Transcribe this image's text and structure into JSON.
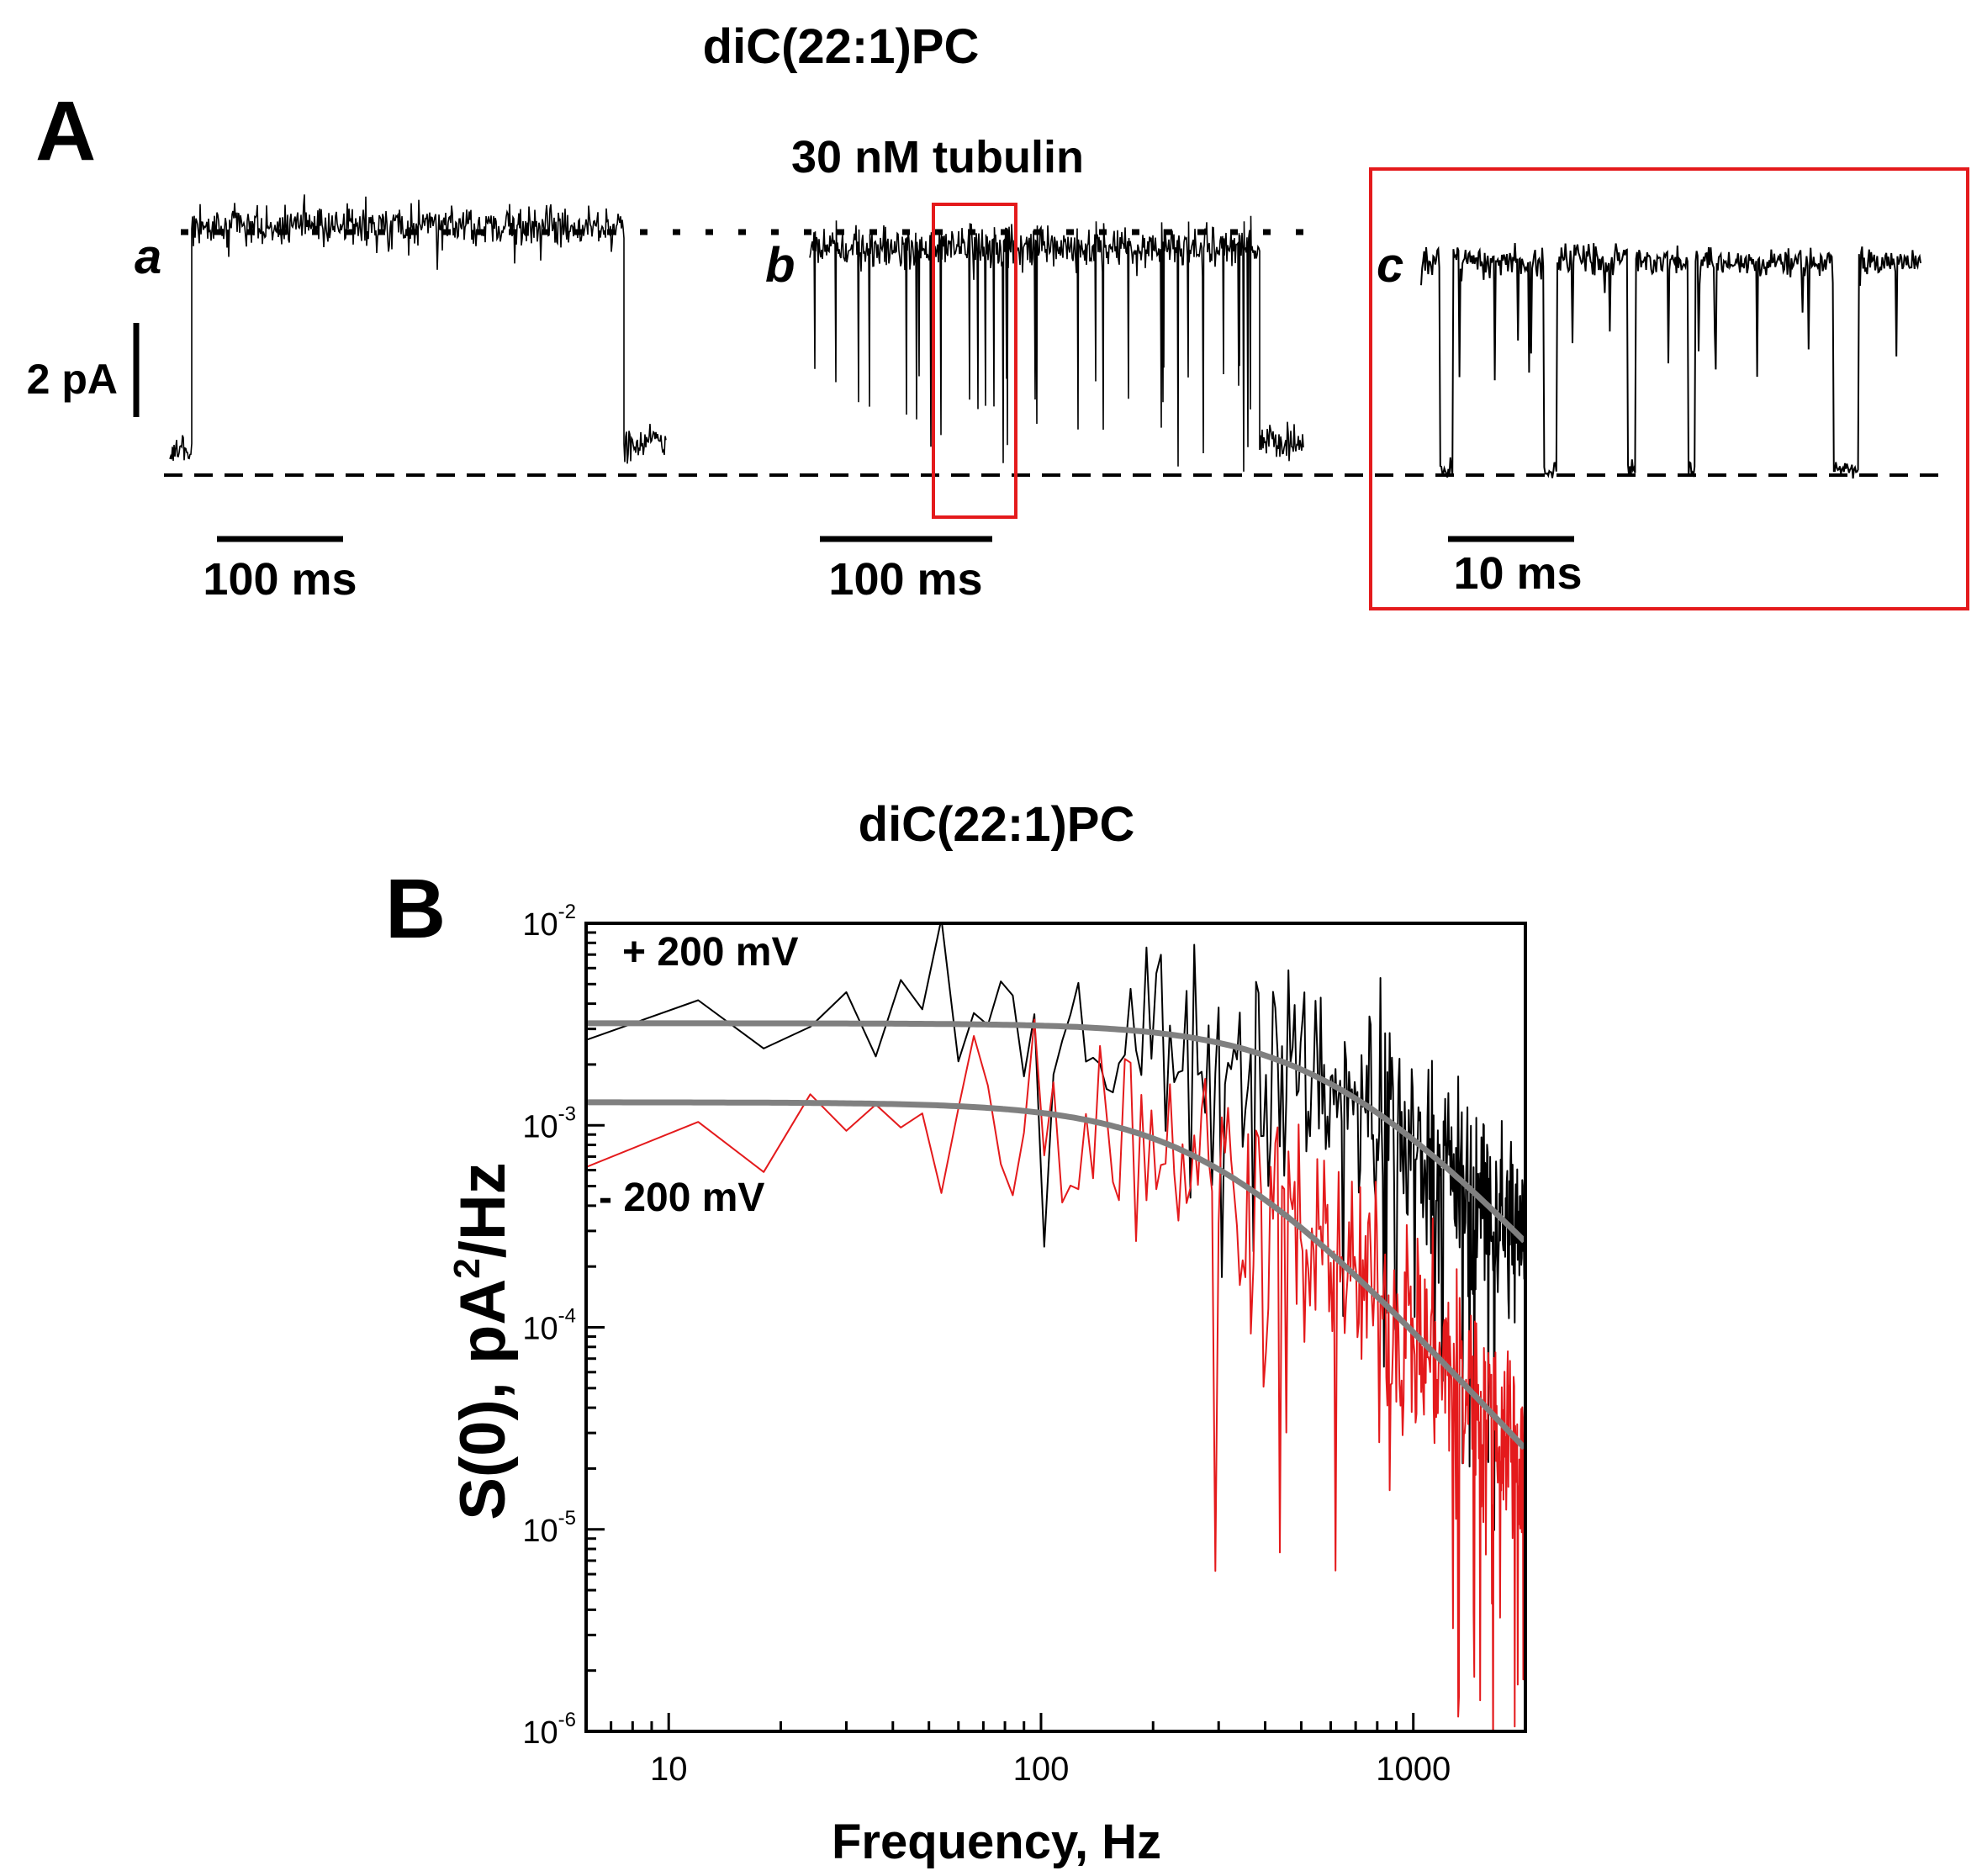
{
  "panel_a": {
    "title": "diC(22:1)PC",
    "panel_label": "A",
    "condition_label": "30 nM tubulin",
    "trace_labels": [
      "a",
      "b",
      "c"
    ],
    "current_scale": {
      "label": "2 pA",
      "value_pA": 2
    },
    "time_scales": [
      {
        "label": "100 ms",
        "value_ms": 100
      },
      {
        "label": "100 ms",
        "value_ms": 100
      },
      {
        "label": "10 ms",
        "value_ms": 10
      }
    ],
    "highlight_color": "#e41a1c"
  },
  "chart_data": {
    "type": "line",
    "title": "diC(22:1)PC",
    "panel_label": "B",
    "xlabel": "Frequency, Hz",
    "ylabel_main": "S(0), pA",
    "ylabel_sup": "2",
    "ylabel_tail": "/Hz",
    "xscale": "log",
    "yscale": "log",
    "xlim": [
      6,
      2000
    ],
    "ylim": [
      1e-06,
      0.01
    ],
    "x_ticks": [
      {
        "value": 10,
        "label": "10"
      },
      {
        "value": 100,
        "label": "100"
      },
      {
        "value": 1000,
        "label": "1000"
      }
    ],
    "y_ticks": [
      {
        "value": 1e-06,
        "base": "10",
        "exp": "-6"
      },
      {
        "value": 1e-05,
        "base": "10",
        "exp": "-5"
      },
      {
        "value": 0.0001,
        "base": "10",
        "exp": "-4"
      },
      {
        "value": 0.001,
        "base": "10",
        "exp": "-3"
      },
      {
        "value": 0.01,
        "base": "10",
        "exp": "-2"
      }
    ],
    "grid": false,
    "series": [
      {
        "name": "+ 200 mV",
        "color": "#000000",
        "kind": "spectrum",
        "plateau": 0.0032,
        "corner_hz": 600,
        "spread_decades": 0.9
      },
      {
        "name": "- 200 mV",
        "color": "#e41a1c",
        "kind": "spectrum",
        "plateau": 0.0013,
        "corner_hz": 280,
        "spread_decades": 1.0
      },
      {
        "color": "#808080",
        "kind": "lorentzian_fit",
        "plateau": 0.0032,
        "corner_hz": 600
      },
      {
        "color": "#808080",
        "kind": "lorentzian_fit",
        "plateau": 0.0013,
        "corner_hz": 280
      }
    ]
  }
}
